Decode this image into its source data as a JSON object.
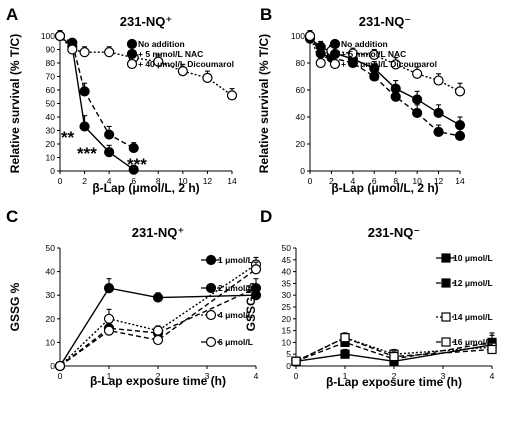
{
  "chart_data": [
    {
      "panel": "A",
      "type": "line",
      "title": "231-NQ⁺",
      "xlabel": "β-Lap (μmol/L, 2 h)",
      "ylabel": "Relative survival (% T/C)",
      "xlim": [
        0,
        14
      ],
      "ylim": [
        0,
        100
      ],
      "xticks": [
        0,
        2,
        4,
        6,
        8,
        10,
        12,
        14
      ],
      "yticks": [
        0,
        10,
        20,
        30,
        40,
        50,
        60,
        70,
        80,
        90,
        100
      ],
      "legend_position": "top-right",
      "series": [
        {
          "name": "No addition",
          "marker": "filled",
          "line": "solid",
          "x": [
            0,
            1,
            2,
            4,
            6
          ],
          "y": [
            100,
            92,
            33,
            14,
            1
          ],
          "err": [
            4,
            3,
            8,
            5,
            1
          ]
        },
        {
          "name": "+ 5 mmol/L NAC",
          "marker": "filled",
          "line": "dashed",
          "x": [
            0,
            1,
            2,
            4,
            6
          ],
          "y": [
            100,
            95,
            59,
            27,
            17
          ],
          "err": [
            4,
            3,
            6,
            6,
            4
          ]
        },
        {
          "name": "+ 40 μmol/L Dicoumarol",
          "marker": "open",
          "line": "dotted",
          "x": [
            0,
            1,
            2,
            4,
            6,
            8,
            10,
            12,
            14
          ],
          "y": [
            100,
            90,
            88,
            88,
            84,
            81,
            74,
            69,
            56
          ],
          "err": [
            4,
            4,
            4,
            4,
            5,
            5,
            5,
            5,
            5
          ]
        }
      ],
      "annotations": [
        "**",
        "***",
        "***"
      ]
    },
    {
      "panel": "B",
      "type": "line",
      "title": "231-NQ⁻",
      "xlabel": "β-Lap (μmol/L, 2 h)",
      "ylabel": "Relative survival (% T/C)",
      "xlim": [
        0,
        14
      ],
      "ylim": [
        0,
        100
      ],
      "xticks": [
        0,
        2,
        4,
        6,
        8,
        10,
        12,
        14
      ],
      "yticks": [
        0,
        20,
        40,
        60,
        80,
        100
      ],
      "legend_position": "top-right",
      "series": [
        {
          "name": "No addition",
          "marker": "filled",
          "line": "solid",
          "x": [
            0,
            1,
            2,
            4,
            6,
            8,
            10,
            12,
            14
          ],
          "y": [
            98,
            92,
            88,
            83,
            76,
            61,
            53,
            43,
            34
          ],
          "err": [
            4,
            4,
            4,
            4,
            5,
            6,
            6,
            6,
            6
          ]
        },
        {
          "name": "+ 5 mmol/L NAC",
          "marker": "filled",
          "line": "dashed",
          "x": [
            0,
            1,
            2,
            4,
            6,
            8,
            10,
            12,
            14
          ],
          "y": [
            100,
            87,
            84,
            80,
            70,
            55,
            43,
            29,
            26
          ],
          "err": [
            4,
            4,
            4,
            4,
            5,
            6,
            6,
            5,
            5
          ]
        },
        {
          "name": "+ 40 μmol/L Dicoumarol",
          "marker": "open",
          "line": "dotted",
          "x": [
            0,
            1,
            2,
            4,
            6,
            8,
            10,
            12,
            14
          ],
          "y": [
            100,
            80,
            89,
            87,
            86,
            79,
            72,
            67,
            59
          ],
          "err": [
            4,
            6,
            4,
            4,
            4,
            5,
            5,
            5,
            6
          ]
        }
      ]
    },
    {
      "panel": "C",
      "type": "line",
      "title": "231-NQ⁺",
      "xlabel": "β-Lap exposure time (h)",
      "ylabel": "GSSG %",
      "xlim": [
        0,
        4
      ],
      "ylim": [
        0,
        50
      ],
      "xticks": [
        0,
        1,
        2,
        3,
        4
      ],
      "yticks": [
        0,
        10,
        20,
        30,
        40,
        50
      ],
      "legend_position": "right",
      "series": [
        {
          "name": "1 μmol/L",
          "marker": "filled",
          "line": "solid",
          "x": [
            0,
            1,
            2,
            4
          ],
          "y": [
            0,
            33,
            29,
            30
          ],
          "err": [
            0,
            4,
            2,
            4
          ]
        },
        {
          "name": "2 μmol/L",
          "marker": "filled",
          "line": "dashed",
          "x": [
            0,
            1,
            2,
            4
          ],
          "y": [
            0,
            16,
            14,
            33
          ],
          "err": [
            0,
            3,
            2,
            4
          ]
        },
        {
          "name": "4 μmol/L",
          "marker": "open",
          "line": "dotted",
          "x": [
            0,
            1,
            2,
            4
          ],
          "y": [
            0,
            20,
            15,
            43
          ],
          "err": [
            0,
            4,
            2,
            3
          ]
        },
        {
          "name": "6 μmol/L",
          "marker": "open",
          "line": "dashed",
          "x": [
            0,
            1,
            2,
            4
          ],
          "y": [
            0,
            15,
            11,
            41
          ],
          "err": [
            0,
            3,
            2,
            3
          ]
        }
      ]
    },
    {
      "panel": "D",
      "type": "line",
      "title": "231-NQ⁻",
      "xlabel": "β-Lap exposure time (h)",
      "ylabel": "GSSG %",
      "xlim": [
        0,
        4
      ],
      "ylim": [
        0,
        50
      ],
      "xticks": [
        0,
        1,
        2,
        3,
        4
      ],
      "yticks": [
        0,
        5,
        10,
        15,
        20,
        25,
        30,
        35,
        40,
        45,
        50
      ],
      "legend_position": "right",
      "series": [
        {
          "name": "10 μmol/L",
          "marker": "filled-square",
          "line": "solid",
          "x": [
            0,
            1,
            2,
            4
          ],
          "y": [
            2,
            5,
            2,
            9
          ],
          "err": [
            1,
            2,
            1,
            5
          ]
        },
        {
          "name": "12 μmol/L",
          "marker": "filled-square",
          "line": "dashed",
          "x": [
            0,
            1,
            2,
            4
          ],
          "y": [
            2,
            10,
            3,
            10
          ],
          "err": [
            1,
            2,
            2,
            3
          ]
        },
        {
          "name": "14 μmol/L",
          "marker": "open-square",
          "line": "dotted",
          "x": [
            0,
            1,
            2,
            4
          ],
          "y": [
            2,
            12,
            5,
            8
          ],
          "err": [
            1,
            2,
            2,
            3
          ]
        },
        {
          "name": "16 μmol/L",
          "marker": "open-square",
          "line": "dashed",
          "x": [
            0,
            1,
            2,
            4
          ],
          "y": [
            2,
            12,
            4,
            7
          ],
          "err": [
            1,
            2,
            2,
            3
          ]
        }
      ]
    }
  ]
}
